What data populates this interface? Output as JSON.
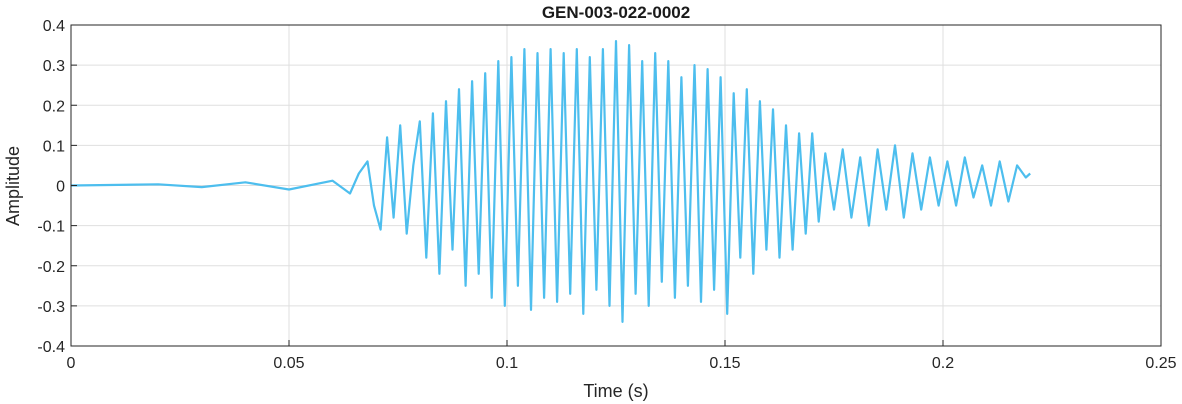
{
  "chart_data": {
    "type": "line",
    "title": "GEN-003-022-0002",
    "xlabel": "Time (s)",
    "ylabel": "Amplitude",
    "xlim": [
      0,
      0.25
    ],
    "ylim": [
      -0.4,
      0.4
    ],
    "xticks": [
      0,
      0.05,
      0.1,
      0.15,
      0.2,
      0.25
    ],
    "xtick_labels": [
      "0",
      "0.05",
      "0.1",
      "0.15",
      "0.2",
      "0.25"
    ],
    "yticks": [
      -0.4,
      -0.3,
      -0.2,
      -0.1,
      0,
      0.1,
      0.2,
      0.3,
      0.4
    ],
    "ytick_labels": [
      "-0.4",
      "-0.3",
      "-0.2",
      "-0.1",
      "0",
      "0.1",
      "0.2",
      "0.3",
      "0.4"
    ],
    "grid": true,
    "line_color": "#4DBEEE",
    "series": [
      {
        "x": [
          0,
          0.02,
          0.03,
          0.04,
          0.05,
          0.06,
          0.064,
          0.066,
          0.068,
          0.0695,
          0.071,
          0.0725,
          0.074,
          0.0755,
          0.077,
          0.0785,
          0.08,
          0.0815,
          0.083,
          0.0845,
          0.086,
          0.0875,
          0.089,
          0.0905,
          0.092,
          0.0935,
          0.095,
          0.0965,
          0.098,
          0.0995,
          0.101,
          0.1025,
          0.104,
          0.1055,
          0.107,
          0.1085,
          0.11,
          0.1115,
          0.113,
          0.1145,
          0.116,
          0.1175,
          0.119,
          0.1205,
          0.122,
          0.1235,
          0.125,
          0.1265,
          0.128,
          0.1295,
          0.131,
          0.1325,
          0.134,
          0.1355,
          0.137,
          0.1385,
          0.14,
          0.1415,
          0.143,
          0.1445,
          0.146,
          0.1475,
          0.149,
          0.1505,
          0.152,
          0.1535,
          0.155,
          0.1565,
          0.158,
          0.1595,
          0.161,
          0.1625,
          0.164,
          0.1655,
          0.167,
          0.1685,
          0.17,
          0.1715,
          0.173,
          0.175,
          0.177,
          0.179,
          0.181,
          0.183,
          0.185,
          0.187,
          0.189,
          0.191,
          0.193,
          0.195,
          0.197,
          0.199,
          0.201,
          0.203,
          0.205,
          0.207,
          0.209,
          0.211,
          0.213,
          0.215,
          0.217,
          0.219,
          0.22
        ],
        "y": [
          0,
          0.003,
          -0.004,
          0.008,
          -0.01,
          0.012,
          -0.02,
          0.03,
          0.06,
          -0.05,
          -0.11,
          0.12,
          -0.08,
          0.15,
          -0.12,
          0.05,
          0.16,
          -0.18,
          0.18,
          -0.22,
          0.21,
          -0.16,
          0.24,
          -0.25,
          0.26,
          -0.22,
          0.28,
          -0.28,
          0.31,
          -0.3,
          0.32,
          -0.25,
          0.34,
          -0.31,
          0.33,
          -0.28,
          0.34,
          -0.29,
          0.33,
          -0.27,
          0.34,
          -0.32,
          0.32,
          -0.26,
          0.34,
          -0.3,
          0.36,
          -0.34,
          0.35,
          -0.27,
          0.31,
          -0.3,
          0.33,
          -0.24,
          0.31,
          -0.28,
          0.27,
          -0.25,
          0.3,
          -0.29,
          0.29,
          -0.26,
          0.27,
          -0.32,
          0.23,
          -0.18,
          0.24,
          -0.22,
          0.21,
          -0.16,
          0.19,
          -0.18,
          0.15,
          -0.16,
          0.13,
          -0.12,
          0.13,
          -0.09,
          0.08,
          -0.06,
          0.09,
          -0.08,
          0.07,
          -0.1,
          0.09,
          -0.06,
          0.1,
          -0.08,
          0.08,
          -0.06,
          0.07,
          -0.05,
          0.06,
          -0.05,
          0.07,
          -0.03,
          0.05,
          -0.05,
          0.06,
          -0.04,
          0.05,
          0.02,
          0.03
        ]
      }
    ]
  }
}
